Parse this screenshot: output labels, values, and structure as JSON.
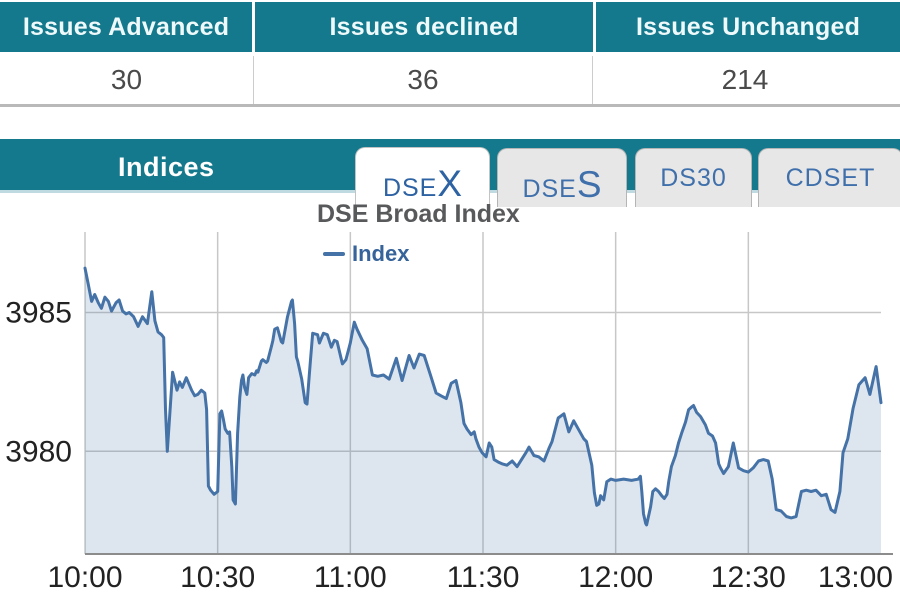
{
  "summary_table": {
    "columns": [
      {
        "header": "Issues Advanced",
        "value": "30"
      },
      {
        "header": "Issues declined",
        "value": "36"
      },
      {
        "header": "Issues Unchanged",
        "value": "214"
      }
    ]
  },
  "indices_panel": {
    "title": "Indices",
    "tabs": [
      {
        "small": "DSE",
        "large": "X",
        "active": true
      },
      {
        "small": "DSE",
        "large": "S",
        "active": false
      },
      {
        "small": "DS30",
        "large": "",
        "active": false
      },
      {
        "small": "CDSET",
        "large": "",
        "active": false
      }
    ]
  },
  "colors": {
    "teal_header": "#14798c",
    "tab_text_blue": "#4070ab",
    "active_tab_text": "#2d62a3",
    "line_blue": "#4572a7",
    "area_fill": "rgba(69,114,167,0.18)",
    "grid_gray": "#c7c7c7",
    "axis_gray": "#8c8c8c",
    "title_gray": "#58595b",
    "legend_blue": "#35639a"
  },
  "chart_data": {
    "type": "area",
    "title": "DSE Broad Index",
    "legend_position": "top",
    "grid": true,
    "x_tick_labels": [
      "10:00",
      "10:30",
      "11:00",
      "11:30",
      "12:00",
      "12:30",
      "13:00"
    ],
    "x_tick_minutes": [
      0,
      30,
      60,
      90,
      120,
      150,
      180
    ],
    "x_range_minutes": [
      0,
      180
    ],
    "y_gridlines": [
      3985,
      3980
    ],
    "ylim": [
      3976.3,
      3987.9
    ],
    "series": [
      {
        "name": "Index",
        "color": "#4572a7",
        "fill": "rgba(69,114,167,0.18)",
        "points": [
          [
            0,
            3986.6
          ],
          [
            0.7,
            3986.05
          ],
          [
            1.5,
            3985.4
          ],
          [
            2.2,
            3985.65
          ],
          [
            3,
            3985.35
          ],
          [
            3.7,
            3985.15
          ],
          [
            4.5,
            3985.55
          ],
          [
            5.3,
            3985.4
          ],
          [
            6,
            3985.05
          ],
          [
            7,
            3985.35
          ],
          [
            7.7,
            3985.45
          ],
          [
            8.5,
            3985.05
          ],
          [
            9.3,
            3984.95
          ],
          [
            10,
            3985
          ],
          [
            11,
            3984.85
          ],
          [
            12,
            3984.5
          ],
          [
            13,
            3984.85
          ],
          [
            14.1,
            3984.6
          ],
          [
            15.1,
            3985.75
          ],
          [
            15.8,
            3984.7
          ],
          [
            16.5,
            3984.3
          ],
          [
            17.3,
            3984.2
          ],
          [
            17.8,
            3984.1
          ],
          [
            18.2,
            3981.5
          ],
          [
            18.6,
            3980
          ],
          [
            19.8,
            3982.85
          ],
          [
            20.8,
            3982.2
          ],
          [
            21.4,
            3982.5
          ],
          [
            22,
            3982.3
          ],
          [
            22.9,
            3982.65
          ],
          [
            24.1,
            3982.2
          ],
          [
            24.8,
            3982
          ],
          [
            25.5,
            3982.05
          ],
          [
            26.3,
            3982.2
          ],
          [
            27.1,
            3982.1
          ],
          [
            27.5,
            3981.5
          ],
          [
            27.9,
            3978.75
          ],
          [
            28.4,
            3978.6
          ],
          [
            29.2,
            3978.45
          ],
          [
            30,
            3978.55
          ],
          [
            30.5,
            3981.35
          ],
          [
            30.9,
            3981.45
          ],
          [
            31.3,
            3981.15
          ],
          [
            31.7,
            3980.8
          ],
          [
            32.3,
            3980.65
          ],
          [
            32.7,
            3980.7
          ],
          [
            33.2,
            3979.45
          ],
          [
            33.5,
            3978.25
          ],
          [
            34,
            3978.1
          ],
          [
            34.5,
            3980.65
          ],
          [
            35,
            3981.95
          ],
          [
            35.4,
            3982.55
          ],
          [
            35.7,
            3982.75
          ],
          [
            36.1,
            3982.3
          ],
          [
            36.6,
            3982.05
          ],
          [
            37,
            3982.65
          ],
          [
            37.7,
            3982.8
          ],
          [
            38.4,
            3982.75
          ],
          [
            38.8,
            3982.9
          ],
          [
            39.1,
            3982.85
          ],
          [
            39.9,
            3983.25
          ],
          [
            40.2,
            3983.3
          ],
          [
            41,
            3983.2
          ],
          [
            41.3,
            3983.25
          ],
          [
            42.2,
            3983.8
          ],
          [
            42.5,
            3984
          ],
          [
            42.9,
            3984.4
          ],
          [
            43.5,
            3984.45
          ],
          [
            44.4,
            3983.95
          ],
          [
            44.7,
            3983.9
          ],
          [
            45.8,
            3984.85
          ],
          [
            46.7,
            3985.4
          ],
          [
            46.9,
            3985.45
          ],
          [
            47.4,
            3984.6
          ],
          [
            47.8,
            3983.4
          ],
          [
            48.1,
            3983.25
          ],
          [
            49,
            3982.6
          ],
          [
            49.8,
            3981.75
          ],
          [
            50.2,
            3981.7
          ],
          [
            51,
            3983.3
          ],
          [
            51.5,
            3984.25
          ],
          [
            52.6,
            3984.2
          ],
          [
            53,
            3983.9
          ],
          [
            53.9,
            3984.25
          ],
          [
            54.8,
            3984.2
          ],
          [
            55.7,
            3983.75
          ],
          [
            56.4,
            3984
          ],
          [
            57,
            3983.95
          ],
          [
            58.2,
            3983.15
          ],
          [
            59,
            3983.3
          ],
          [
            60,
            3983.9
          ],
          [
            60.9,
            3984.65
          ],
          [
            61.5,
            3984.4
          ],
          [
            62.7,
            3984
          ],
          [
            63.8,
            3983.7
          ],
          [
            65,
            3982.75
          ],
          [
            66.2,
            3982.7
          ],
          [
            67.5,
            3982.75
          ],
          [
            68.8,
            3982.6
          ],
          [
            70.4,
            3983.35
          ],
          [
            71.7,
            3982.55
          ],
          [
            73.3,
            3983.45
          ],
          [
            74.4,
            3983
          ],
          [
            75.6,
            3983.5
          ],
          [
            76.7,
            3983.45
          ],
          [
            78.3,
            3982.65
          ],
          [
            79.4,
            3982.1
          ],
          [
            80.5,
            3982
          ],
          [
            81.7,
            3981.9
          ],
          [
            82.8,
            3982.45
          ],
          [
            83.9,
            3982.55
          ],
          [
            85,
            3981.75
          ],
          [
            85.7,
            3981
          ],
          [
            86.4,
            3980.8
          ],
          [
            87.3,
            3980.6
          ],
          [
            88,
            3980.7
          ],
          [
            88.4,
            3980.45
          ],
          [
            89.1,
            3980.15
          ],
          [
            89.8,
            3979.95
          ],
          [
            90.7,
            3979.8
          ],
          [
            91.4,
            3980.3
          ],
          [
            92,
            3980.15
          ],
          [
            92.5,
            3979.7
          ],
          [
            93.6,
            3979.6
          ],
          [
            94.3,
            3979.55
          ],
          [
            95.4,
            3979.5
          ],
          [
            96.6,
            3979.65
          ],
          [
            97.7,
            3979.45
          ],
          [
            99.7,
            3979.95
          ],
          [
            100.4,
            3980.15
          ],
          [
            101.5,
            3979.85
          ],
          [
            102.6,
            3979.8
          ],
          [
            103.8,
            3979.65
          ],
          [
            104.9,
            3980.1
          ],
          [
            105.6,
            3980.35
          ],
          [
            107,
            3981.2
          ],
          [
            108.3,
            3981.35
          ],
          [
            109.4,
            3980.7
          ],
          [
            110.5,
            3981.1
          ],
          [
            112.1,
            3980.65
          ],
          [
            112.8,
            3980.45
          ],
          [
            113.4,
            3980.35
          ],
          [
            114.6,
            3979.5
          ],
          [
            115.2,
            3978.5
          ],
          [
            115.7,
            3978.05
          ],
          [
            116.2,
            3978.1
          ],
          [
            116.6,
            3978.4
          ],
          [
            117.3,
            3978.25
          ],
          [
            118,
            3978.9
          ],
          [
            118.9,
            3979
          ],
          [
            120,
            3978.95
          ],
          [
            121.8,
            3979
          ],
          [
            123.6,
            3978.95
          ],
          [
            125.1,
            3979
          ],
          [
            125.6,
            3979.1
          ],
          [
            125.9,
            3978.55
          ],
          [
            126.3,
            3977.75
          ],
          [
            126.8,
            3977.4
          ],
          [
            127,
            3977.35
          ],
          [
            127.9,
            3978
          ],
          [
            128.4,
            3978.55
          ],
          [
            129,
            3978.65
          ],
          [
            129.7,
            3978.55
          ],
          [
            130.4,
            3978.4
          ],
          [
            131,
            3978.3
          ],
          [
            131.6,
            3978.45
          ],
          [
            132,
            3978.9
          ],
          [
            132.6,
            3979.45
          ],
          [
            133.5,
            3979.85
          ],
          [
            134.2,
            3980.3
          ],
          [
            134.9,
            3980.65
          ],
          [
            135.8,
            3981.05
          ],
          [
            136.5,
            3981.5
          ],
          [
            137.2,
            3981.6
          ],
          [
            137.6,
            3981.65
          ],
          [
            138.3,
            3981.4
          ],
          [
            139.2,
            3981.25
          ],
          [
            140.3,
            3980.95
          ],
          [
            141,
            3980.65
          ],
          [
            141.9,
            3980.55
          ],
          [
            142.6,
            3980.3
          ],
          [
            143.3,
            3979.55
          ],
          [
            143.7,
            3979.4
          ],
          [
            144.4,
            3979.2
          ],
          [
            145.5,
            3979.45
          ],
          [
            146.6,
            3980.3
          ],
          [
            147.8,
            3979.4
          ],
          [
            148.9,
            3979.3
          ],
          [
            150,
            3979.25
          ],
          [
            151.1,
            3979.4
          ],
          [
            152.3,
            3979.65
          ],
          [
            153.4,
            3979.7
          ],
          [
            154.5,
            3979.65
          ],
          [
            155.4,
            3979
          ],
          [
            156.3,
            3977.9
          ],
          [
            157.4,
            3977.85
          ],
          [
            158.6,
            3977.65
          ],
          [
            159.7,
            3977.6
          ],
          [
            160.8,
            3977.65
          ],
          [
            162,
            3978.55
          ],
          [
            163.1,
            3978.6
          ],
          [
            164.2,
            3978.55
          ],
          [
            165.3,
            3978.6
          ],
          [
            166.5,
            3978.4
          ],
          [
            167.6,
            3978.45
          ],
          [
            168.7,
            3977.9
          ],
          [
            169.6,
            3977.8
          ],
          [
            170.7,
            3978.55
          ],
          [
            171.4,
            3979.95
          ],
          [
            172.5,
            3980.45
          ],
          [
            173.7,
            3981.55
          ],
          [
            175,
            3982.4
          ],
          [
            176.4,
            3982.65
          ],
          [
            177.5,
            3982.05
          ],
          [
            178.9,
            3983.05
          ],
          [
            180,
            3981.75
          ]
        ]
      }
    ]
  }
}
